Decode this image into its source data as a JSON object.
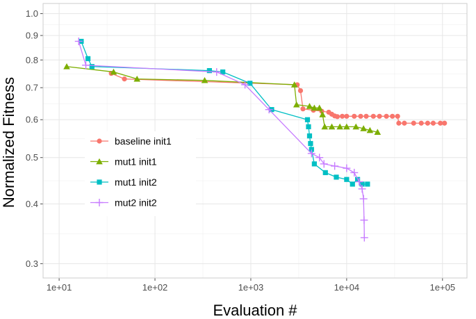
{
  "chart_data": {
    "type": "line",
    "xlabel": "Evaluation #",
    "ylabel": "Normalized Fitness",
    "x_scale": "log10",
    "y_scale": "log10",
    "xlim": [
      6.8,
      180000
    ],
    "ylim": [
      0.28,
      1.05
    ],
    "x_ticks": [
      10,
      100,
      1000,
      10000,
      100000
    ],
    "x_tick_labels": [
      "1e+01",
      "1e+02",
      "1e+03",
      "1e+04",
      "1e+05"
    ],
    "y_ticks": [
      0.3,
      0.4,
      0.5,
      0.6,
      0.7,
      0.8,
      0.9,
      1.0
    ],
    "y_tick_labels": [
      "0.3",
      "0.4",
      "0.5",
      "0.6",
      "0.7",
      "0.8",
      "0.9",
      "1.0"
    ],
    "grid": true,
    "legend_position": "left-center",
    "background": "#ffffff",
    "series": [
      {
        "name": "baseline init1",
        "color": "#f8766d",
        "marker": "circle",
        "points": [
          [
            35,
            0.75
          ],
          [
            48,
            0.73
          ],
          [
            3050,
            0.71
          ],
          [
            3300,
            0.69
          ],
          [
            3500,
            0.632
          ],
          [
            4500,
            0.628
          ],
          [
            5500,
            0.625
          ],
          [
            6500,
            0.622
          ],
          [
            7000,
            0.616
          ],
          [
            7500,
            0.611
          ],
          [
            8000,
            0.609
          ],
          [
            9000,
            0.61
          ],
          [
            10000,
            0.61
          ],
          [
            12000,
            0.61
          ],
          [
            14000,
            0.61
          ],
          [
            16000,
            0.61
          ],
          [
            19000,
            0.61
          ],
          [
            22000,
            0.61
          ],
          [
            26000,
            0.61
          ],
          [
            30000,
            0.61
          ],
          [
            34000,
            0.61
          ],
          [
            35000,
            0.59
          ],
          [
            40000,
            0.59
          ],
          [
            50000,
            0.59
          ],
          [
            60000,
            0.59
          ],
          [
            70000,
            0.59
          ],
          [
            80000,
            0.59
          ],
          [
            95000,
            0.59
          ],
          [
            105000,
            0.59
          ]
        ]
      },
      {
        "name": "mut1 init1",
        "color": "#7cae00",
        "marker": "triangle",
        "points": [
          [
            12,
            0.775
          ],
          [
            37,
            0.755
          ],
          [
            65,
            0.73
          ],
          [
            330,
            0.725
          ],
          [
            2850,
            0.71
          ],
          [
            3000,
            0.645
          ],
          [
            4100,
            0.64
          ],
          [
            4600,
            0.635
          ],
          [
            5200,
            0.635
          ],
          [
            5600,
            0.615
          ],
          [
            5900,
            0.58
          ],
          [
            7000,
            0.58
          ],
          [
            8500,
            0.58
          ],
          [
            10000,
            0.58
          ],
          [
            12500,
            0.58
          ],
          [
            15000,
            0.575
          ],
          [
            17500,
            0.57
          ],
          [
            21000,
            0.565
          ]
        ]
      },
      {
        "name": "mut1 init2",
        "color": "#00bfc4",
        "marker": "square",
        "points": [
          [
            17,
            0.875
          ],
          [
            20,
            0.805
          ],
          [
            22,
            0.775
          ],
          [
            370,
            0.76
          ],
          [
            510,
            0.755
          ],
          [
            980,
            0.715
          ],
          [
            1650,
            0.63
          ],
          [
            3900,
            0.6
          ],
          [
            4000,
            0.58
          ],
          [
            4100,
            0.555
          ],
          [
            4200,
            0.535
          ],
          [
            4300,
            0.52
          ],
          [
            4600,
            0.485
          ],
          [
            6000,
            0.465
          ],
          [
            7800,
            0.455
          ],
          [
            10000,
            0.45
          ],
          [
            11500,
            0.44
          ],
          [
            13000,
            0.45
          ],
          [
            14500,
            0.44
          ],
          [
            16500,
            0.44
          ]
        ]
      },
      {
        "name": "mut2 init2",
        "color": "#c77cff",
        "marker": "plus",
        "points": [
          [
            16,
            0.875
          ],
          [
            19,
            0.78
          ],
          [
            440,
            0.755
          ],
          [
            870,
            0.71
          ],
          [
            1550,
            0.63
          ],
          [
            4300,
            0.51
          ],
          [
            5200,
            0.5
          ],
          [
            5800,
            0.485
          ],
          [
            7500,
            0.48
          ],
          [
            10000,
            0.475
          ],
          [
            12000,
            0.465
          ],
          [
            13500,
            0.445
          ],
          [
            14500,
            0.43
          ],
          [
            15000,
            0.41
          ],
          [
            15200,
            0.37
          ],
          [
            15300,
            0.34
          ]
        ]
      }
    ]
  }
}
